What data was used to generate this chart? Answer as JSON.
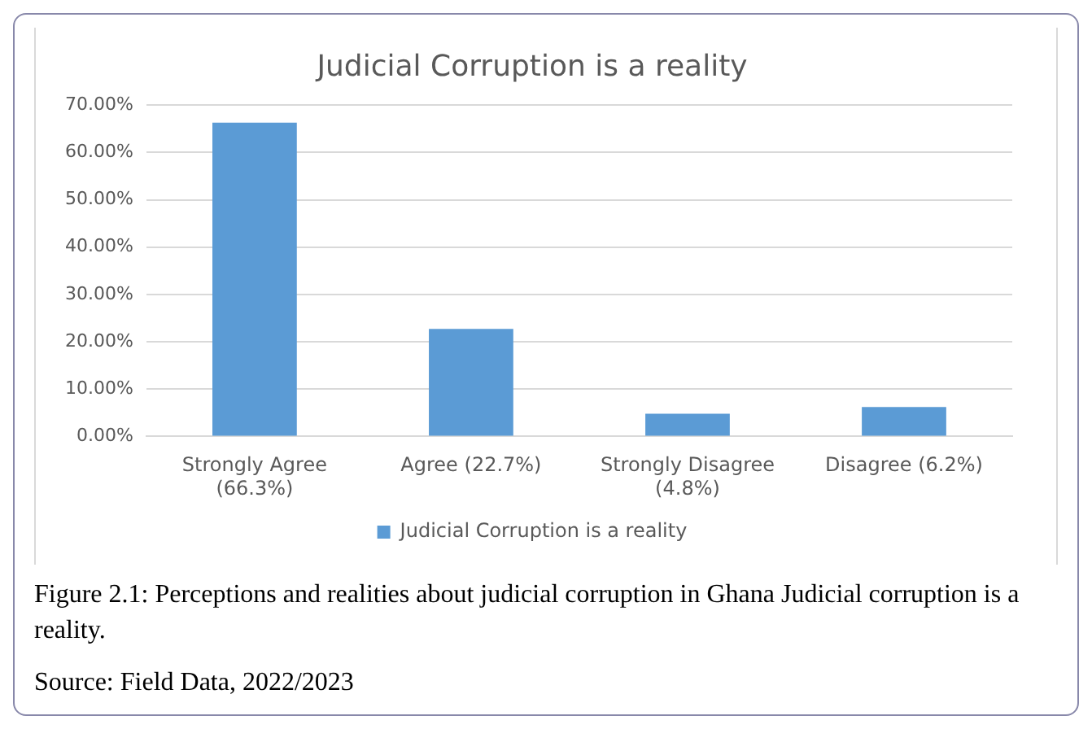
{
  "chart_data": {
    "type": "bar",
    "title": "Judicial Corruption is a reality",
    "categories": [
      "Strongly Agree\n(66.3%)",
      "Agree (22.7%)",
      "Strongly Disagree\n(4.8%)",
      "Disagree (6.2%)"
    ],
    "series": [
      {
        "name": "Judicial Corruption is a reality",
        "color": "#5b9bd5",
        "values": [
          66.3,
          22.7,
          4.8,
          6.2
        ]
      }
    ],
    "ylim": [
      0,
      70
    ],
    "yticks": [
      {
        "value": 0,
        "label": "0.00%"
      },
      {
        "value": 10,
        "label": "10.00%"
      },
      {
        "value": 20,
        "label": "20.00%"
      },
      {
        "value": 30,
        "label": "30.00%"
      },
      {
        "value": 40,
        "label": "40.00%"
      },
      {
        "value": 50,
        "label": "50.00%"
      },
      {
        "value": 60,
        "label": "60.00%"
      },
      {
        "value": 70,
        "label": "70.00%"
      }
    ],
    "grid": "y",
    "legend": "bottom",
    "annotations": [
      "Figure 2.1: Perceptions and realities about judicial corruption in Ghana Judicial corruption is a reality.",
      "Source: Field Data, 2022/2023"
    ]
  }
}
